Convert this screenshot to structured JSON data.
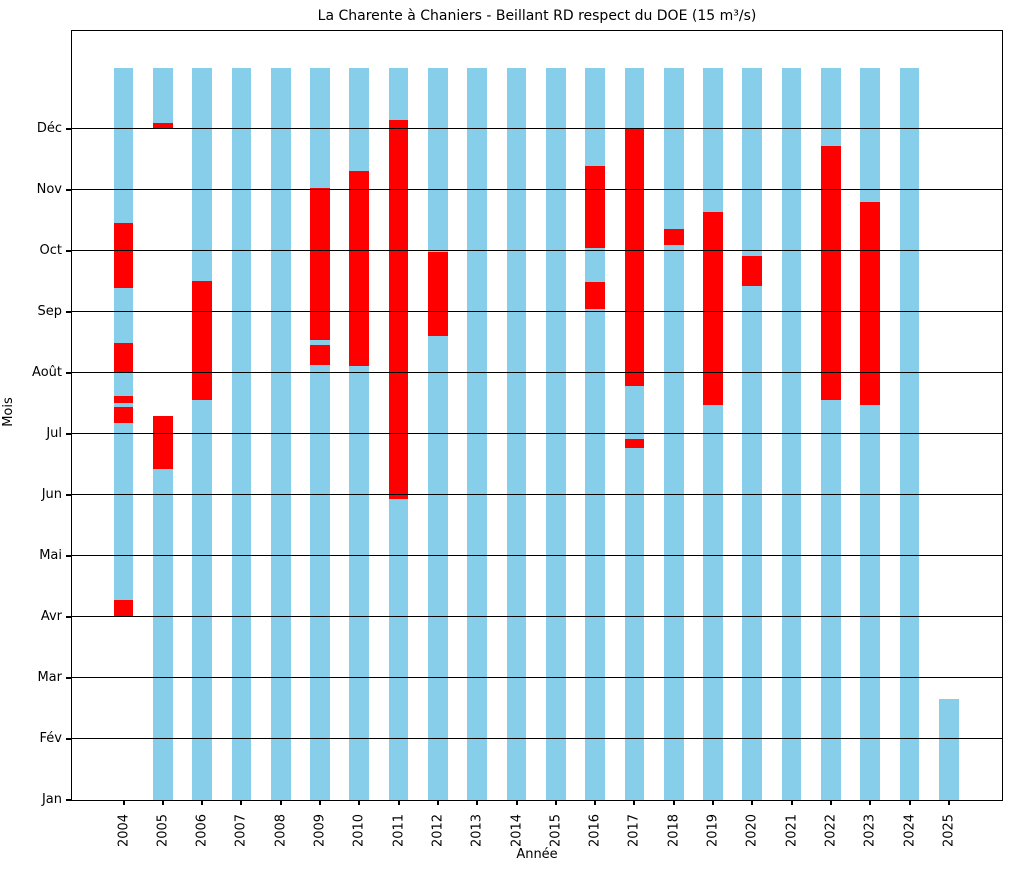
{
  "figure": {
    "title": "La Charente à Chaniers - Beillant RD respect du DOE (15 m³/s)",
    "xlabel": "Année",
    "ylabel": "Mois"
  },
  "chart_data": {
    "type": "bar",
    "title": "La Charente à Chaniers - Beillant RD respect du DOE (15 m³/s)",
    "xlabel": "Année",
    "ylabel": "Mois",
    "grid": true,
    "legend": false,
    "month_ticks": [
      "Jan",
      "Fév",
      "Mar",
      "Avr",
      "Mai",
      "Jun",
      "Jul",
      "Août",
      "Sep",
      "Oct",
      "Nov",
      "Déc"
    ],
    "month_axis_range": [
      1,
      13.6
    ],
    "bar_span_months": [
      1,
      13
    ],
    "colors": {
      "respect": "#87CEEB",
      "non_respect": "#FF0000",
      "grid": "#000000",
      "background": "#FFFFFF"
    },
    "series": [
      {
        "year": "2004",
        "segments": [
          {
            "from": 4.0,
            "to": 4.28,
            "state": "non_respect"
          },
          {
            "from": 4.28,
            "to": 7.18,
            "state": "respect"
          },
          {
            "from": 7.18,
            "to": 7.44,
            "state": "non_respect"
          },
          {
            "from": 7.44,
            "to": 7.51,
            "state": "respect"
          },
          {
            "from": 7.51,
            "to": 7.62,
            "state": "non_respect"
          },
          {
            "from": 7.62,
            "to": 8.0,
            "state": "respect"
          },
          {
            "from": 8.0,
            "to": 8.49,
            "state": "non_respect"
          },
          {
            "from": 8.49,
            "to": 9.39,
            "state": "respect"
          },
          {
            "from": 9.39,
            "to": 10.46,
            "state": "non_respect"
          },
          {
            "from": 10.46,
            "to": 13.0,
            "state": "respect"
          }
        ]
      },
      {
        "year": "2005",
        "segments": [
          {
            "from": 1.0,
            "to": 6.43,
            "state": "respect"
          },
          {
            "from": 6.43,
            "to": 7.29,
            "state": "non_respect"
          },
          {
            "from": 12.0,
            "to": 12.1,
            "state": "non_respect"
          },
          {
            "from": 12.1,
            "to": 13.0,
            "state": "respect"
          }
        ]
      },
      {
        "year": "2006",
        "segments": [
          {
            "from": 1.0,
            "to": 7.56,
            "state": "respect"
          },
          {
            "from": 7.56,
            "to": 9.5,
            "state": "non_respect"
          },
          {
            "from": 9.5,
            "to": 13.0,
            "state": "respect"
          }
        ]
      },
      {
        "year": "2007",
        "segments": [
          {
            "from": 1.0,
            "to": 13.0,
            "state": "respect"
          }
        ]
      },
      {
        "year": "2008",
        "segments": [
          {
            "from": 1.0,
            "to": 13.0,
            "state": "respect"
          }
        ]
      },
      {
        "year": "2009",
        "segments": [
          {
            "from": 1.0,
            "to": 8.12,
            "state": "respect"
          },
          {
            "from": 8.12,
            "to": 8.45,
            "state": "non_respect"
          },
          {
            "from": 8.45,
            "to": 8.54,
            "state": "respect"
          },
          {
            "from": 8.54,
            "to": 11.03,
            "state": "non_respect"
          },
          {
            "from": 11.03,
            "to": 13.0,
            "state": "respect"
          }
        ]
      },
      {
        "year": "2010",
        "segments": [
          {
            "from": 1.0,
            "to": 8.11,
            "state": "respect"
          },
          {
            "from": 8.11,
            "to": 11.3,
            "state": "non_respect"
          },
          {
            "from": 11.3,
            "to": 13.0,
            "state": "respect"
          }
        ]
      },
      {
        "year": "2011",
        "segments": [
          {
            "from": 1.0,
            "to": 5.93,
            "state": "respect"
          },
          {
            "from": 5.93,
            "to": 12.14,
            "state": "non_respect"
          },
          {
            "from": 12.14,
            "to": 13.0,
            "state": "respect"
          }
        ]
      },
      {
        "year": "2012",
        "segments": [
          {
            "from": 1.0,
            "to": 8.6,
            "state": "respect"
          },
          {
            "from": 8.6,
            "to": 9.98,
            "state": "non_respect"
          },
          {
            "from": 9.98,
            "to": 13.0,
            "state": "respect"
          }
        ]
      },
      {
        "year": "2013",
        "segments": [
          {
            "from": 1.0,
            "to": 13.0,
            "state": "respect"
          }
        ]
      },
      {
        "year": "2014",
        "segments": [
          {
            "from": 1.0,
            "to": 13.0,
            "state": "respect"
          }
        ]
      },
      {
        "year": "2015",
        "segments": [
          {
            "from": 1.0,
            "to": 13.0,
            "state": "respect"
          }
        ]
      },
      {
        "year": "2016",
        "segments": [
          {
            "from": 1.0,
            "to": 9.04,
            "state": "respect"
          },
          {
            "from": 9.04,
            "to": 9.49,
            "state": "non_respect"
          },
          {
            "from": 9.49,
            "to": 10.05,
            "state": "respect"
          },
          {
            "from": 10.05,
            "to": 11.39,
            "state": "non_respect"
          },
          {
            "from": 11.39,
            "to": 13.0,
            "state": "respect"
          }
        ]
      },
      {
        "year": "2017",
        "segments": [
          {
            "from": 1.0,
            "to": 6.77,
            "state": "respect"
          },
          {
            "from": 6.77,
            "to": 6.92,
            "state": "non_respect"
          },
          {
            "from": 6.92,
            "to": 7.78,
            "state": "respect"
          },
          {
            "from": 7.78,
            "to": 12.01,
            "state": "non_respect"
          },
          {
            "from": 12.01,
            "to": 13.0,
            "state": "respect"
          }
        ]
      },
      {
        "year": "2018",
        "segments": [
          {
            "from": 1.0,
            "to": 10.09,
            "state": "respect"
          },
          {
            "from": 10.09,
            "to": 10.36,
            "state": "non_respect"
          },
          {
            "from": 10.36,
            "to": 13.0,
            "state": "respect"
          }
        ]
      },
      {
        "year": "2019",
        "segments": [
          {
            "from": 1.0,
            "to": 7.48,
            "state": "respect"
          },
          {
            "from": 7.48,
            "to": 10.64,
            "state": "non_respect"
          },
          {
            "from": 10.64,
            "to": 13.0,
            "state": "respect"
          }
        ]
      },
      {
        "year": "2020",
        "segments": [
          {
            "from": 1.0,
            "to": 9.42,
            "state": "respect"
          },
          {
            "from": 9.42,
            "to": 9.92,
            "state": "non_respect"
          },
          {
            "from": 9.92,
            "to": 13.0,
            "state": "respect"
          }
        ]
      },
      {
        "year": "2021",
        "segments": [
          {
            "from": 1.0,
            "to": 13.0,
            "state": "respect"
          }
        ]
      },
      {
        "year": "2022",
        "segments": [
          {
            "from": 1.0,
            "to": 7.56,
            "state": "respect"
          },
          {
            "from": 7.56,
            "to": 11.72,
            "state": "non_respect"
          },
          {
            "from": 11.72,
            "to": 13.0,
            "state": "respect"
          }
        ]
      },
      {
        "year": "2023",
        "segments": [
          {
            "from": 1.0,
            "to": 7.48,
            "state": "respect"
          },
          {
            "from": 7.48,
            "to": 10.8,
            "state": "non_respect"
          },
          {
            "from": 10.8,
            "to": 13.0,
            "state": "respect"
          }
        ]
      },
      {
        "year": "2024",
        "segments": [
          {
            "from": 1.0,
            "to": 13.0,
            "state": "respect"
          }
        ]
      },
      {
        "year": "2025",
        "segments": [
          {
            "from": 1.0,
            "to": 2.65,
            "state": "respect"
          }
        ]
      }
    ]
  }
}
